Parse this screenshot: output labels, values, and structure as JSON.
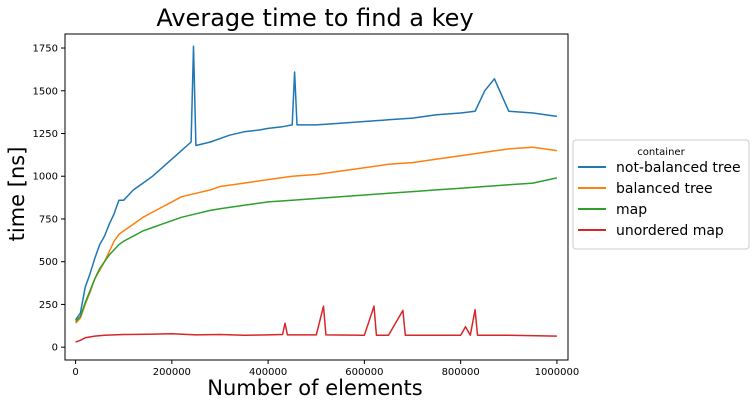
{
  "chart_data": {
    "type": "line",
    "title": "Average time to find a key",
    "xlabel": "Number of elements",
    "ylabel": "time [ns]",
    "xlim": [
      -22000,
      1023000
    ],
    "ylim": [
      -75,
      1832
    ],
    "xticks": [
      0,
      200000,
      400000,
      600000,
      800000,
      1000000
    ],
    "xtick_labels": [
      "0",
      "200000",
      "400000",
      "600000",
      "800000",
      "1000000"
    ],
    "yticks": [
      0,
      250,
      500,
      750,
      1000,
      1250,
      1500,
      1750
    ],
    "ytick_labels": [
      "0",
      "250",
      "500",
      "750",
      "1000",
      "1250",
      "1500",
      "1750"
    ],
    "grid": false,
    "legend": {
      "title": "container",
      "placement": "right-outside"
    },
    "series": [
      {
        "name": "not-balanced tree",
        "color": "#1f77b4",
        "x": [
          0,
          10000,
          20000,
          30000,
          40000,
          50000,
          60000,
          70000,
          80000,
          90000,
          100000,
          120000,
          140000,
          160000,
          180000,
          200000,
          220000,
          240000,
          245000,
          250000,
          280000,
          300000,
          320000,
          350000,
          380000,
          400000,
          430000,
          450000,
          455000,
          460000,
          500000,
          550000,
          600000,
          650000,
          700000,
          750000,
          800000,
          830000,
          850000,
          870000,
          900000,
          950000,
          1000000
        ],
        "values": [
          160,
          200,
          350,
          430,
          520,
          600,
          650,
          720,
          780,
          860,
          860,
          920,
          960,
          1000,
          1050,
          1100,
          1150,
          1200,
          1760,
          1180,
          1200,
          1220,
          1240,
          1260,
          1270,
          1280,
          1290,
          1300,
          1610,
          1300,
          1300,
          1310,
          1320,
          1330,
          1340,
          1360,
          1370,
          1380,
          1500,
          1570,
          1380,
          1370,
          1350
        ]
      },
      {
        "name": "balanced tree",
        "color": "#ff7f0e",
        "x": [
          0,
          10000,
          20000,
          30000,
          40000,
          50000,
          60000,
          70000,
          80000,
          90000,
          100000,
          120000,
          140000,
          160000,
          180000,
          200000,
          220000,
          250000,
          280000,
          300000,
          350000,
          400000,
          450000,
          500000,
          550000,
          600000,
          650000,
          700000,
          750000,
          800000,
          850000,
          900000,
          950000,
          1000000
        ],
        "values": [
          140,
          170,
          250,
          320,
          400,
          450,
          500,
          560,
          620,
          660,
          680,
          720,
          760,
          790,
          820,
          850,
          880,
          900,
          920,
          940,
          960,
          980,
          1000,
          1010,
          1030,
          1050,
          1070,
          1080,
          1100,
          1120,
          1140,
          1160,
          1170,
          1150
        ]
      },
      {
        "name": "map",
        "color": "#2ca02c",
        "x": [
          0,
          10000,
          20000,
          30000,
          40000,
          50000,
          60000,
          70000,
          80000,
          90000,
          100000,
          120000,
          140000,
          160000,
          180000,
          200000,
          220000,
          250000,
          280000,
          300000,
          350000,
          400000,
          450000,
          500000,
          550000,
          600000,
          650000,
          700000,
          750000,
          800000,
          850000,
          900000,
          950000,
          1000000
        ],
        "values": [
          150,
          180,
          260,
          330,
          400,
          460,
          500,
          540,
          570,
          600,
          620,
          650,
          680,
          700,
          720,
          740,
          760,
          780,
          800,
          810,
          830,
          850,
          860,
          870,
          880,
          890,
          900,
          910,
          920,
          930,
          940,
          950,
          960,
          990
        ]
      },
      {
        "name": "unordered map",
        "color": "#d62728",
        "x": [
          0,
          10000,
          20000,
          40000,
          60000,
          80000,
          100000,
          150000,
          200000,
          250000,
          300000,
          350000,
          400000,
          430000,
          435000,
          440000,
          500000,
          515000,
          520000,
          600000,
          620000,
          625000,
          650000,
          680000,
          685000,
          700000,
          800000,
          810000,
          820000,
          830000,
          835000,
          900000,
          1000000
        ],
        "values": [
          30,
          40,
          55,
          65,
          70,
          72,
          74,
          76,
          78,
          72,
          74,
          70,
          72,
          74,
          140,
          72,
          72,
          240,
          72,
          70,
          240,
          70,
          70,
          215,
          70,
          70,
          70,
          120,
          70,
          220,
          70,
          70,
          65
        ]
      }
    ]
  }
}
